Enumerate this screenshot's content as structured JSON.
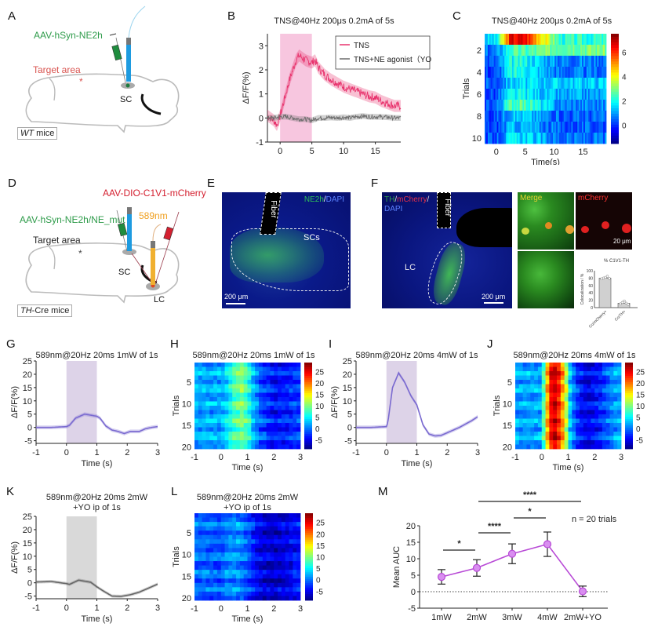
{
  "panels": {
    "A": {
      "label": "A",
      "virus": "AAV-hSyn-NE2h",
      "target": "Target area",
      "region": "SC",
      "mice": {
        "italic": "WT",
        "rest": " mice"
      },
      "colors": {
        "virus": "#2e9b4a",
        "target": "#d9534f",
        "fiber": "#1e9be0"
      }
    },
    "B": {
      "label": "B"
    },
    "C": {
      "label": "C"
    },
    "D": {
      "label": "D",
      "virus1": "AAV-hSyn-NE2h/NE_mut",
      "virus2": "AAV-DIO-C1V1-mCherry",
      "laser": "589nm",
      "target": "Target area",
      "region1": "SC",
      "region2": "LC",
      "mice": {
        "italic": "TH",
        "rest": "-Cre mice"
      },
      "colors": {
        "virus1": "#2e9b4a",
        "virus2": "#d42030",
        "laser": "#f0a020"
      }
    },
    "E": {
      "label": "E",
      "stain_green": "NE2h",
      "stain_sep": "/",
      "stain_blue": "DAPI",
      "fiber": "Fiber",
      "region": "SCs",
      "scale": "200 μm"
    },
    "F": {
      "label": "F",
      "stain_th": "TH",
      "stain_sep1": "/",
      "stain_mcherry": "mCherry",
      "stain_sep2": "/",
      "stain_dapi": "DAPI",
      "fiber": "Fiber",
      "region": "LC",
      "scale": "200 μm",
      "merge": "Merge",
      "mcherry": "mCherry",
      "micro_scale": "20 μm"
    },
    "G": {
      "label": "G"
    },
    "H": {
      "label": "H"
    },
    "I": {
      "label": "I"
    },
    "J": {
      "label": "J"
    },
    "K": {
      "label": "K"
    },
    "L": {
      "label": "L"
    },
    "M": {
      "label": "M"
    }
  },
  "chart_data": [
    {
      "id": "B",
      "type": "line",
      "title": "TNS@40Hz 200μs 0.2mA of 5s",
      "xlabel": "Time (s)",
      "ylabel": "ΔF/F(%)",
      "xlim": [
        -2,
        19
      ],
      "ylim": [
        -1,
        3.5
      ],
      "xticks": [
        0,
        5,
        10,
        15
      ],
      "yticks": [
        -1,
        0,
        1,
        2,
        3
      ],
      "stim_window": [
        0,
        5
      ],
      "stim_color": "#f7c6df",
      "legend": "top-right",
      "series": [
        {
          "name": "TNS",
          "color": "#e8336d",
          "x": [
            -2,
            -1,
            -0.5,
            0,
            0.5,
            1,
            1.5,
            2,
            2.5,
            3,
            3.5,
            4,
            4.5,
            5,
            5.5,
            6,
            7,
            8,
            9,
            10,
            11,
            12,
            13,
            14,
            15,
            16,
            17,
            18,
            19
          ],
          "y": [
            0.1,
            -0.1,
            -0.3,
            0.1,
            0.6,
            1.1,
            1.6,
            2.0,
            2.4,
            2.6,
            2.5,
            2.4,
            2.35,
            2.3,
            2.4,
            2.1,
            1.8,
            1.6,
            1.45,
            1.3,
            1.2,
            1.1,
            1.0,
            0.9,
            0.85,
            0.7,
            0.6,
            0.5,
            0.5
          ]
        },
        {
          "name": "TNS+NE agonist（YO)",
          "color": "#6b6b6b",
          "x": [
            -2,
            -1,
            0,
            1,
            2,
            3,
            4,
            5,
            6,
            7,
            8,
            9,
            10,
            11,
            12,
            13,
            14,
            15,
            16,
            17,
            18,
            19
          ],
          "y": [
            0,
            0,
            0.05,
            0.05,
            0,
            -0.05,
            -0.05,
            -0.1,
            0,
            0,
            0.02,
            0,
            0.03,
            0,
            0.05,
            0.08,
            0.05,
            0.05,
            0.04,
            0.03,
            0,
            0
          ]
        }
      ]
    },
    {
      "id": "C",
      "type": "heatmap",
      "title": "TNS@40Hz 200μs 0.2mA of 5s",
      "xlabel": "Time(s)",
      "ylabel": "Trials",
      "xlim": [
        -2,
        19
      ],
      "rows": 10,
      "xticks": [
        0,
        5,
        10,
        15
      ],
      "yticks": [
        2,
        4,
        6,
        8,
        10
      ],
      "colorbar_ticks": [
        0,
        2,
        4,
        6
      ],
      "clim": [
        -1.5,
        7.5
      ],
      "row_profiles": [
        {
          "base": 1.5,
          "peak": 6.5,
          "tail": 2.2
        },
        {
          "base": 0.6,
          "peak": 2.5,
          "tail": 3.0
        },
        {
          "base": 0.4,
          "peak": 2.0,
          "tail": 0.8
        },
        {
          "base": 0.2,
          "peak": 2.0,
          "tail": 0.6
        },
        {
          "base": 0.4,
          "peak": 1.5,
          "tail": 1.5
        },
        {
          "base": 0.3,
          "peak": 1.8,
          "tail": 1.0
        },
        {
          "base": 0.5,
          "peak": 2.6,
          "tail": 0.8
        },
        {
          "base": 0.3,
          "peak": 1.4,
          "tail": 0.5
        },
        {
          "base": 0.2,
          "peak": 1.2,
          "tail": 0.4
        },
        {
          "base": 0.3,
          "peak": 1.6,
          "tail": 0.6
        }
      ]
    },
    {
      "id": "G",
      "type": "line",
      "title": "589nm@20Hz 20ms 1mW of 1s",
      "xlabel": "Time (s)",
      "ylabel": "ΔF/F(%)",
      "xlim": [
        -1,
        3
      ],
      "ylim": [
        -6,
        25
      ],
      "xticks": [
        -1,
        0,
        1,
        2,
        3
      ],
      "yticks": [
        -5,
        0,
        5,
        10,
        15,
        20,
        25
      ],
      "stim_window": [
        0,
        1
      ],
      "stim_color": "#ddd3e8",
      "series": [
        {
          "name": "1mW",
          "color": "#7a6ad0",
          "x": [
            -1,
            -0.5,
            0,
            0.1,
            0.3,
            0.6,
            0.8,
            1.0,
            1.1,
            1.3,
            1.5,
            1.7,
            1.9,
            2.1,
            2.4,
            2.6,
            2.8,
            3.0
          ],
          "y": [
            0,
            0,
            0.3,
            0.8,
            3.5,
            5.0,
            4.6,
            4.2,
            3.5,
            0.5,
            -1.0,
            -1.5,
            -2.3,
            -1.5,
            -1.5,
            -0.5,
            0,
            0.3
          ]
        }
      ]
    },
    {
      "id": "H",
      "type": "heatmap",
      "title": "589nm@20Hz 20ms 1mW of 1s",
      "xlabel": "Time (s)",
      "ylabel": "Trials",
      "xlim": [
        -1,
        3
      ],
      "rows": 20,
      "xticks": [
        -1,
        0,
        1,
        2,
        3
      ],
      "yticks": [
        5,
        10,
        15,
        20
      ],
      "colorbar_ticks": [
        -5,
        0,
        5,
        10,
        15,
        20,
        25
      ],
      "clim": [
        -9,
        29
      ],
      "profile": {
        "x": [
          -1,
          0,
          0.2,
          0.5,
          0.8,
          1.0,
          1.2,
          1.5,
          2.0,
          2.5,
          3.0
        ],
        "y": [
          2,
          2,
          4,
          8,
          10,
          8,
          3,
          -1,
          -4,
          -3,
          -2
        ]
      }
    },
    {
      "id": "I",
      "type": "line",
      "title": "589nm@20Hz 20ms 4mW of 1s",
      "xlabel": "Time (s)",
      "ylabel": "ΔF/F(%)",
      "xlim": [
        -1,
        3
      ],
      "ylim": [
        -6,
        25
      ],
      "xticks": [
        -1,
        0,
        1,
        2,
        3
      ],
      "yticks": [
        -5,
        0,
        5,
        10,
        15,
        20,
        25
      ],
      "stim_window": [
        0,
        1
      ],
      "stim_color": "#ddd3e8",
      "series": [
        {
          "name": "4mW",
          "color": "#7a6ad0",
          "x": [
            -1,
            -0.5,
            0,
            0.05,
            0.2,
            0.4,
            0.6,
            0.8,
            1.0,
            1.2,
            1.4,
            1.6,
            1.8,
            2.0,
            2.4,
            2.8,
            3.0
          ],
          "y": [
            0,
            0,
            0.3,
            2,
            15,
            20.5,
            17,
            12,
            8.5,
            1,
            -2.5,
            -3.2,
            -3.0,
            -2,
            0,
            2.5,
            4
          ]
        }
      ]
    },
    {
      "id": "J",
      "type": "heatmap",
      "title": "589nm@20Hz 20ms 4mW of 1s",
      "xlabel": "Time (s)",
      "ylabel": "Trials",
      "xlim": [
        -1,
        3
      ],
      "rows": 20,
      "xticks": [
        -1,
        0,
        1,
        2,
        3
      ],
      "yticks": [
        5,
        10,
        15,
        20
      ],
      "colorbar_ticks": [
        -5,
        0,
        5,
        10,
        15,
        20,
        25
      ],
      "clim": [
        -9,
        29
      ],
      "profile": {
        "x": [
          -1,
          0,
          0.1,
          0.3,
          0.5,
          0.7,
          0.9,
          1.1,
          1.4,
          1.8,
          2.2,
          2.6,
          3.0
        ],
        "y": [
          2,
          2,
          10,
          24,
          26,
          22,
          14,
          2,
          -3,
          -5,
          -3,
          0,
          3
        ]
      }
    },
    {
      "id": "K",
      "type": "line",
      "title": "589nm@20Hz 20ms 2mW\n+YO ip of 1s",
      "title_lines": [
        "589nm@20Hz 20ms 2mW",
        "+YO ip of 1s"
      ],
      "xlabel": "Time (s)",
      "ylabel": "ΔF/F(%)",
      "xlim": [
        -1,
        3
      ],
      "ylim": [
        -6,
        25
      ],
      "xticks": [
        -1,
        0,
        1,
        2,
        3
      ],
      "yticks": [
        -5,
        0,
        5,
        10,
        15,
        20,
        25
      ],
      "stim_window": [
        0,
        1
      ],
      "stim_color": "#d9d9d9",
      "series": [
        {
          "name": "2mW+YO",
          "color": "#666666",
          "x": [
            -1,
            -0.5,
            0,
            0.1,
            0.4,
            0.8,
            1.0,
            1.2,
            1.5,
            1.8,
            2.1,
            2.4,
            2.7,
            3.0
          ],
          "y": [
            0.3,
            0.5,
            -0.3,
            -0.6,
            1.0,
            0.2,
            -1.5,
            -3,
            -5,
            -5.1,
            -4.5,
            -3.5,
            -2,
            -0.5
          ]
        }
      ]
    },
    {
      "id": "L",
      "type": "heatmap",
      "title": "589nm@20Hz 20ms 2mW\n+YO ip of 1s",
      "title_lines": [
        "589nm@20Hz 20ms 2mW",
        "+YO ip of 1s"
      ],
      "xlabel": "Time (s)",
      "ylabel": "Trials",
      "xlim": [
        -1,
        3
      ],
      "rows": 20,
      "xticks": [
        -1,
        0,
        1,
        2,
        3
      ],
      "yticks": [
        5,
        10,
        15,
        20
      ],
      "colorbar_ticks": [
        -5,
        0,
        5,
        10,
        15,
        20,
        25
      ],
      "clim": [
        -9,
        29
      ],
      "profile": {
        "x": [
          -1,
          0,
          0.3,
          0.7,
          1.0,
          1.3,
          1.7,
          2.0,
          2.5,
          3.0
        ],
        "y": [
          0,
          -1,
          1,
          1,
          -1,
          -4,
          -6,
          -6,
          -5,
          -3
        ]
      }
    },
    {
      "id": "M",
      "type": "line",
      "xlabel": "",
      "ylabel": "Mean AUC",
      "categories": [
        "1mW",
        "2mW",
        "3mW",
        "4mW",
        "2mW+YO"
      ],
      "values": [
        4.5,
        7.2,
        11.5,
        14.4,
        0.1
      ],
      "errors": [
        2.2,
        2.5,
        3.0,
        3.7,
        1.6
      ],
      "ylim": [
        -5,
        20
      ],
      "yticks": [
        -5,
        0,
        5,
        10,
        15,
        20
      ],
      "color": "#b84ad6",
      "marker_fill": "#d98ef0",
      "annotation": "n = 20 trials",
      "significance": [
        {
          "from": 0,
          "to": 1,
          "label": "*"
        },
        {
          "from": 1,
          "to": 2,
          "label": "****"
        },
        {
          "from": 2,
          "to": 3,
          "label": "*"
        },
        {
          "from": 1,
          "to": 4,
          "label": "****"
        }
      ]
    },
    {
      "id": "F-inset",
      "type": "bar",
      "title": "% C1V1-TH",
      "ylabel": "Colocalization / %",
      "categories": [
        "Co/mCherry+",
        "Co/TH+"
      ],
      "values": [
        80,
        12
      ],
      "points": [
        [
          78,
          80,
          82,
          85,
          79
        ],
        [
          10,
          14,
          18,
          12,
          9
        ]
      ],
      "ylim": [
        0,
        100
      ],
      "yticks": [
        0,
        20,
        40,
        60,
        80,
        100
      ]
    }
  ]
}
